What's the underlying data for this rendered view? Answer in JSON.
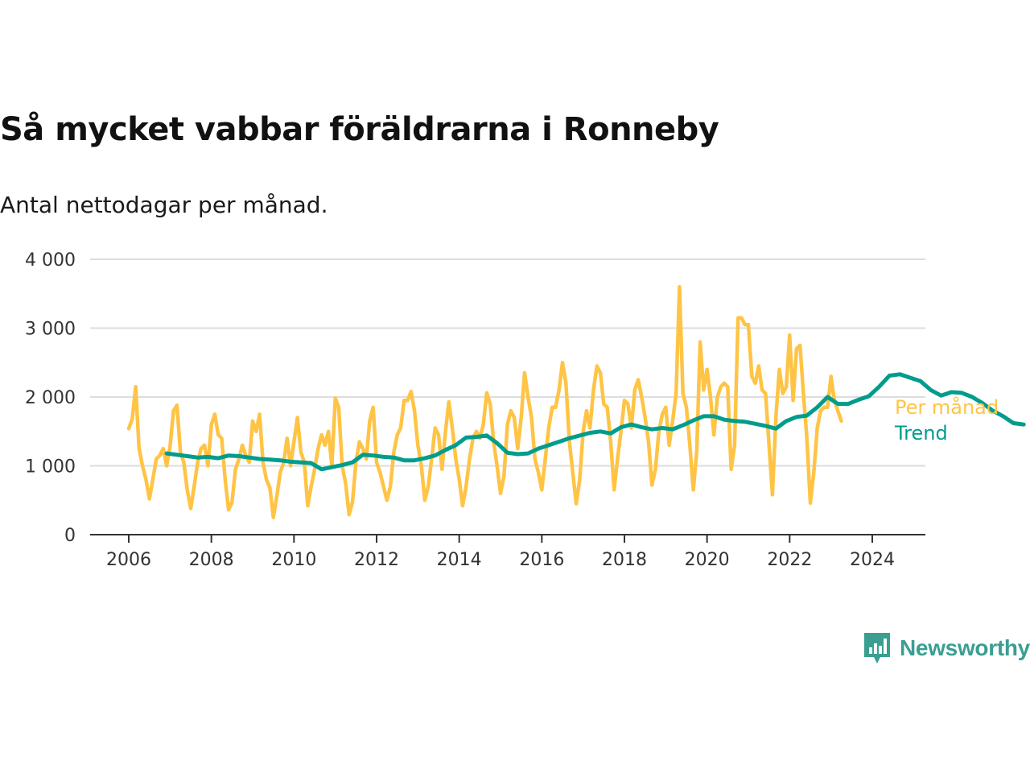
{
  "chart_data": {
    "type": "line",
    "title": "Så mycket vabbar föräldrarna i Ronneby",
    "subtitle": "Antal nettodagar per månad.",
    "xlabel": "",
    "ylabel": "",
    "xlim": [
      2006,
      2024.5
    ],
    "ylim": [
      0,
      4000
    ],
    "grid": true,
    "y_ticks": [
      0,
      1000,
      2000,
      3000,
      4000
    ],
    "y_tick_labels": [
      "0",
      "1 000",
      "2 000",
      "3 000",
      "4 000"
    ],
    "x_ticks": [
      2006,
      2008,
      2010,
      2012,
      2014,
      2016,
      2018,
      2020,
      2022,
      2024
    ],
    "x_tick_labels": [
      "2006",
      "2008",
      "2010",
      "2012",
      "2014",
      "2016",
      "2018",
      "2020",
      "2022",
      "2024"
    ],
    "legend": "right, next to series ends",
    "series": [
      {
        "name": "Per månad",
        "color": "#FFC445",
        "start": 2006.0,
        "step_months": 1,
        "values": [
          1540,
          1680,
          2150,
          1250,
          1000,
          800,
          520,
          800,
          1100,
          1150,
          1250,
          1000,
          1280,
          1800,
          1880,
          1200,
          1050,
          650,
          380,
          700,
          1050,
          1250,
          1300,
          1000,
          1600,
          1750,
          1450,
          1400,
          800,
          360,
          470,
          950,
          1100,
          1300,
          1150,
          1050,
          1650,
          1500,
          1750,
          1050,
          800,
          680,
          250,
          550,
          900,
          1050,
          1400,
          1000,
          1350,
          1700,
          1200,
          1050,
          420,
          700,
          950,
          1250,
          1450,
          1300,
          1500,
          1000,
          1980,
          1850,
          1000,
          750,
          290,
          480,
          1050,
          1350,
          1250,
          1100,
          1650,
          1850,
          1050,
          900,
          700,
          500,
          700,
          1200,
          1450,
          1550,
          1950,
          1950,
          2080,
          1800,
          1300,
          1000,
          500,
          700,
          1100,
          1550,
          1450,
          950,
          1500,
          1930,
          1550,
          1100,
          800,
          420,
          700,
          1100,
          1400,
          1500,
          1400,
          1600,
          2060,
          1900,
          1350,
          1000,
          600,
          850,
          1600,
          1800,
          1700,
          1250,
          1700,
          2350,
          2000,
          1700,
          1100,
          900,
          650,
          1100,
          1550,
          1850,
          1850,
          2100,
          2500,
          2200,
          1350,
          900,
          450,
          800,
          1500,
          1800,
          1550,
          2100,
          2450,
          2350,
          1900,
          1850,
          1350,
          650,
          1100,
          1500,
          1950,
          1900,
          1550,
          2100,
          2250,
          2000,
          1700,
          1350,
          720,
          950,
          1500,
          1750,
          1850,
          1300,
          1650,
          2050,
          3600,
          2050,
          1850,
          1300,
          650,
          1200,
          2800,
          2100,
          2400,
          2000,
          1450,
          2000,
          2150,
          2200,
          2150,
          950,
          1300,
          3150,
          3150,
          3050,
          3050,
          2300,
          2200,
          2450,
          2100,
          2050,
          1300,
          580,
          1700,
          2400,
          2050,
          2150,
          2900,
          1950,
          2700,
          2750,
          2050,
          1400,
          460,
          900,
          1550,
          1800,
          1850,
          1850,
          2300,
          1950,
          1800,
          1650
        ]
      },
      {
        "name": "Trend",
        "color": "#009C8C",
        "start": 2006.917,
        "step_months": 3,
        "values": [
          1180,
          1160,
          1140,
          1120,
          1130,
          1110,
          1150,
          1140,
          1120,
          1100,
          1090,
          1080,
          1060,
          1050,
          1040,
          950,
          980,
          1010,
          1050,
          1160,
          1150,
          1130,
          1120,
          1080,
          1080,
          1110,
          1150,
          1230,
          1300,
          1410,
          1420,
          1440,
          1330,
          1190,
          1170,
          1180,
          1250,
          1300,
          1350,
          1400,
          1440,
          1480,
          1500,
          1470,
          1560,
          1600,
          1560,
          1530,
          1550,
          1530,
          1590,
          1660,
          1720,
          1720,
          1670,
          1650,
          1640,
          1610,
          1580,
          1540,
          1650,
          1710,
          1730,
          1850,
          2000,
          1900,
          1900,
          1960,
          2010,
          2150,
          2310,
          2330,
          2280,
          2230,
          2100,
          2020,
          2070,
          2060,
          2000,
          1910,
          1800,
          1720,
          1620,
          1600
        ]
      }
    ]
  },
  "brand": {
    "name": "Newsworthy",
    "icon": "newsworthy-logo-icon",
    "color": "#3A9E91"
  }
}
